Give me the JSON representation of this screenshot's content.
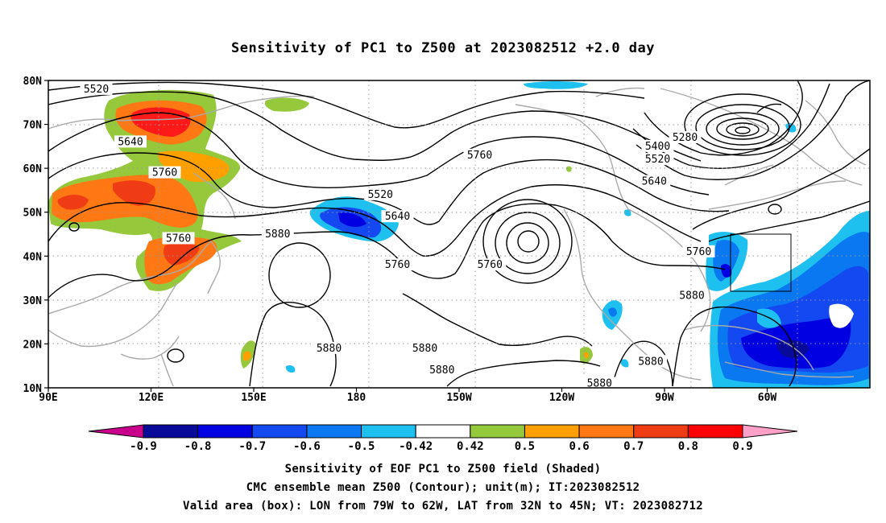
{
  "title": "Sensitivity of PC1 to Z500 at 2023082512 +2.0 day",
  "axes": {
    "lat_ticks": [
      "80N",
      "70N",
      "60N",
      "50N",
      "40N",
      "30N",
      "20N",
      "10N"
    ],
    "lon_ticks": [
      "90E",
      "120E",
      "150E",
      "180",
      "150W",
      "120W",
      "90W",
      "60W"
    ],
    "lon_range": [
      90,
      330
    ],
    "lat_range": [
      10,
      80
    ],
    "grid": true
  },
  "contour_labels": [
    {
      "text": "5520",
      "lon": 104,
      "lat": 78
    },
    {
      "text": "5640",
      "lon": 114,
      "lat": 66
    },
    {
      "text": "5760",
      "lon": 124,
      "lat": 59
    },
    {
      "text": "5760",
      "lon": 128,
      "lat": 44
    },
    {
      "text": "5880",
      "lon": 157,
      "lat": 45
    },
    {
      "text": "5520",
      "lon": 187,
      "lat": 54
    },
    {
      "text": "5640",
      "lon": 192,
      "lat": 49
    },
    {
      "text": "5760",
      "lon": 192,
      "lat": 38
    },
    {
      "text": "5760",
      "lon": 216,
      "lat": 63
    },
    {
      "text": "5760",
      "lon": 219,
      "lat": 38
    },
    {
      "text": "5880",
      "lon": 172,
      "lat": 19
    },
    {
      "text": "5880",
      "lon": 200,
      "lat": 19
    },
    {
      "text": "5880",
      "lon": 205,
      "lat": 14
    },
    {
      "text": "5880",
      "lon": 251,
      "lat": 11
    },
    {
      "text": "5880",
      "lon": 266,
      "lat": 16
    },
    {
      "text": "5880",
      "lon": 278,
      "lat": 31
    },
    {
      "text": "5760",
      "lon": 280,
      "lat": 41
    },
    {
      "text": "5640",
      "lon": 267,
      "lat": 57
    },
    {
      "text": "5520",
      "lon": 268,
      "lat": 62
    },
    {
      "text": "5400",
      "lon": 268,
      "lat": 65
    },
    {
      "text": "5280",
      "lon": 276,
      "lat": 67
    }
  ],
  "colorbar": {
    "labels": [
      "-0.9",
      "-0.8",
      "-0.7",
      "-0.6",
      "-0.5",
      "-0.42",
      "0.42",
      "0.5",
      "0.6",
      "0.7",
      "0.8",
      "0.9"
    ],
    "colors": [
      "#c8008c",
      "#0a0a9a",
      "#0000e0",
      "#1448f0",
      "#0a78f0",
      "#1ec0f0",
      "#ffffff",
      "#96c83c",
      "#ffa000",
      "#ff7814",
      "#f03c14",
      "#ff0000",
      "#ffa0c8"
    ]
  },
  "shading_colors": {
    "red": "#ff1a1a",
    "orange_red": "#f03c14",
    "orange": "#ff7814",
    "amber": "#ffa000",
    "green": "#96c83c",
    "light_blue": "#1ec0f0",
    "mid_blue": "#0a78f0",
    "blue": "#1448f0",
    "dark_blue": "#0000e0",
    "contour": "#000000",
    "coast": "#aaaaaa"
  },
  "valid_box": {
    "lon_from": -79,
    "lon_to": -62,
    "lat_from": 32,
    "lat_to": 45
  },
  "captions": [
    "Sensitivity of EOF PC1 to Z500 field (Shaded)",
    "CMC ensemble mean Z500 (Contour); unit(m); IT:2023082512",
    "Valid area (box): LON from 79W to 62W, LAT from 32N to 45N; VT: 2023082712"
  ]
}
